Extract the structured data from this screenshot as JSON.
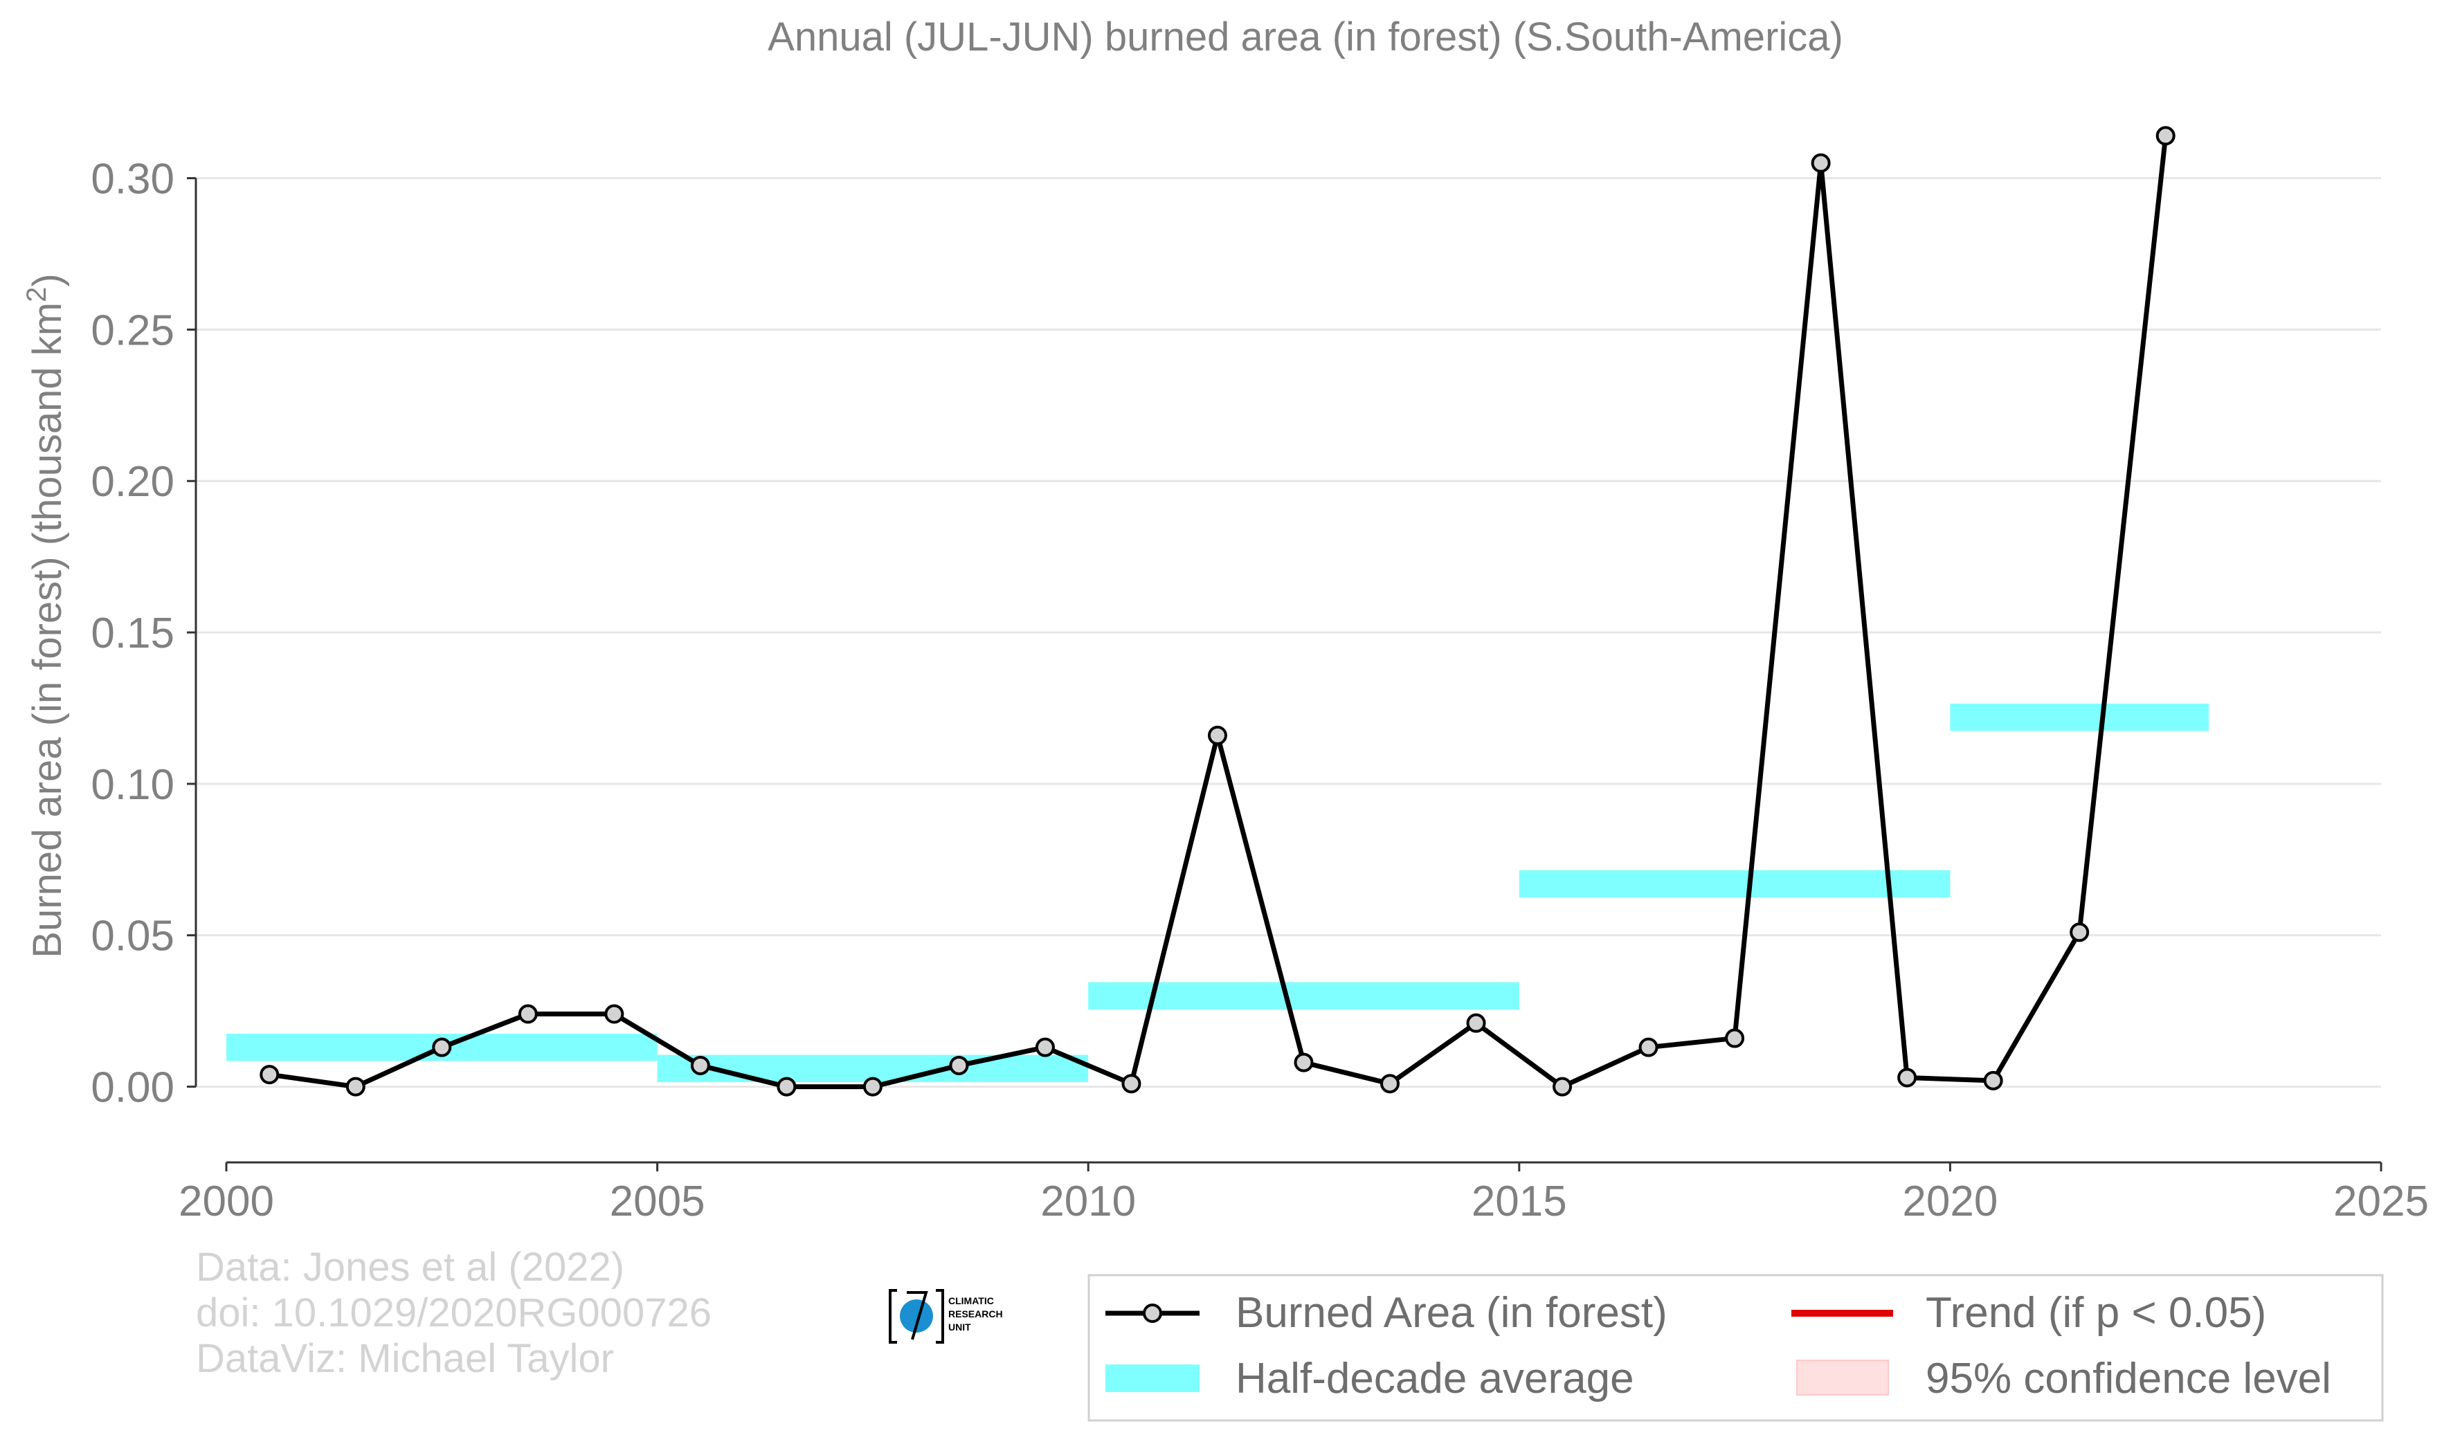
{
  "chart_data": {
    "type": "line",
    "title": "Annual (JUL-JUN) burned area (in forest) (S.South-America)",
    "ylabel": "Burned area (in forest) (thousand km",
    "ylabel_sup": "2",
    "ylabel_end": ")",
    "xlim": [
      2000,
      2025
    ],
    "ylim": [
      -0.025,
      0.32
    ],
    "x_ticks": [
      2000,
      2005,
      2010,
      2015,
      2020,
      2025
    ],
    "x_tick_labels": [
      "2000",
      "2005",
      "2010",
      "2015",
      "2020",
      "2025"
    ],
    "y_ticks": [
      0.0,
      0.05,
      0.1,
      0.15,
      0.2,
      0.25,
      0.3
    ],
    "y_tick_labels": [
      "0.00",
      "0.05",
      "0.10",
      "0.15",
      "0.20",
      "0.25",
      "0.30"
    ],
    "grid": "horizontal",
    "series": [
      {
        "name": "Burned Area (in forest)",
        "color": "#000000",
        "marker_color": "#d3d3d3",
        "x": [
          2000.5,
          2001.5,
          2002.5,
          2003.5,
          2004.5,
          2005.5,
          2006.5,
          2007.5,
          2008.5,
          2009.5,
          2010.5,
          2011.5,
          2012.5,
          2013.5,
          2014.5,
          2015.5,
          2016.5,
          2017.5,
          2018.5,
          2019.5,
          2020.5,
          2021.5,
          2022.5
        ],
        "values": [
          0.004,
          0.0,
          0.013,
          0.024,
          0.024,
          0.007,
          0.0,
          0.0,
          0.007,
          0.013,
          0.001,
          0.116,
          0.008,
          0.001,
          0.021,
          0.0,
          0.013,
          0.016,
          0.305,
          0.003,
          0.002,
          0.051,
          0.314
        ]
      }
    ],
    "half_decade": {
      "name": "Half-decade average",
      "color": "#7fffff",
      "segments": [
        {
          "start": 2000,
          "end": 2005,
          "value": 0.013
        },
        {
          "start": 2005,
          "end": 2010,
          "value": 0.006
        },
        {
          "start": 2010,
          "end": 2015,
          "value": 0.03
        },
        {
          "start": 2015,
          "end": 2020,
          "value": 0.067
        },
        {
          "start": 2020,
          "end": 2023,
          "value": 0.122
        }
      ]
    },
    "trend": {
      "name": "Trend (if p < 0.05)",
      "color": "#e00000"
    },
    "confidence": {
      "name": "95% confidence level",
      "color": "#ffe0e0"
    },
    "legend_position": "bottom-right"
  },
  "credits": {
    "line1": "Data: Jones et al (2022)",
    "line2": "doi: 10.1029/2020RG000726",
    "line3": "DataViz: Michael Taylor"
  },
  "logo": {
    "line1": "CLIMATIC",
    "line2": "RESEARCH",
    "line3": "UNIT",
    "icon": "globe-icon",
    "globe_color": "#1a8fd1"
  }
}
